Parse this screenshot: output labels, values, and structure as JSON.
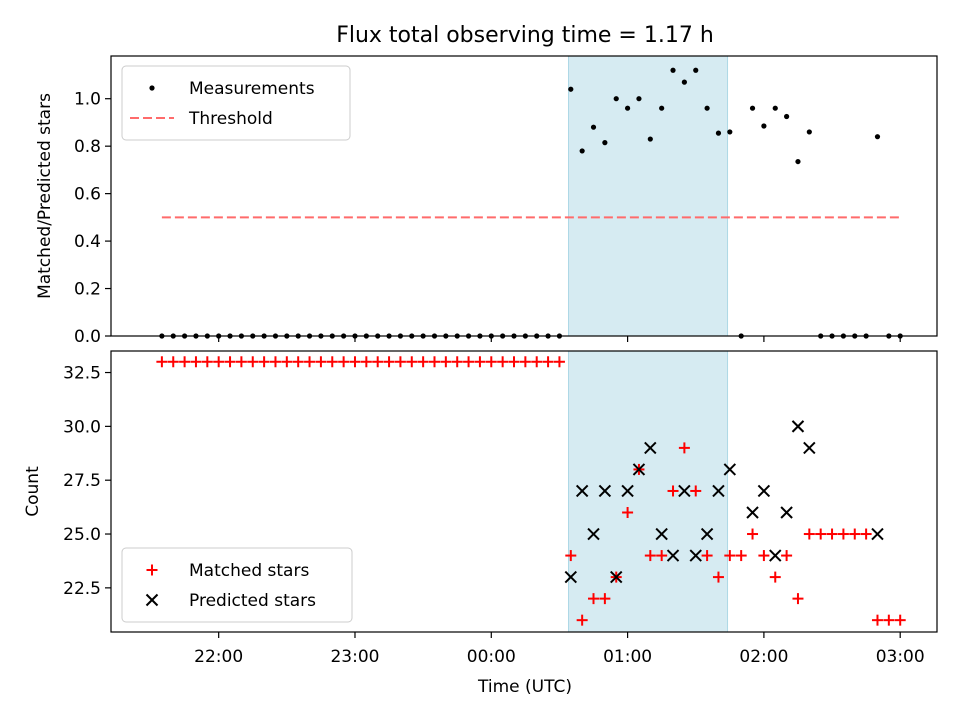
{
  "figure": {
    "title": "Flux total observing time = 1.17 h",
    "xlabel": "Time (UTC)",
    "colors": {
      "measurement": "#000000",
      "threshold": "#ff6b6b",
      "matched": "#ff0000",
      "predicted": "#000000",
      "highlight": "#add8e6"
    }
  },
  "chart_data": [
    {
      "type": "scatter",
      "title": "Flux total observing time = 1.17 h",
      "ylabel": "Matched/Predicted stars",
      "xlabel": "",
      "x_unit": "time_utc",
      "x_ticks": [
        "22:00",
        "23:00",
        "00:00",
        "01:00",
        "02:00",
        "03:00"
      ],
      "ylim": [
        0,
        1.18
      ],
      "y_ticks": [
        "0.0",
        "0.2",
        "0.4",
        "0.6",
        "0.8",
        "1.0"
      ],
      "legend_position": "top-left",
      "highlight_span": [
        "00:34",
        "01:44"
      ],
      "threshold": {
        "name": "Threshold",
        "value": 0.5,
        "x_range": [
          "21:35",
          "03:00"
        ]
      },
      "series": [
        {
          "name": "Measurements",
          "points": [
            [
              "21:35",
              0
            ],
            [
              "21:40",
              0
            ],
            [
              "21:45",
              0
            ],
            [
              "21:50",
              0
            ],
            [
              "21:55",
              0
            ],
            [
              "22:00",
              0
            ],
            [
              "22:05",
              0
            ],
            [
              "22:10",
              0
            ],
            [
              "22:15",
              0
            ],
            [
              "22:20",
              0
            ],
            [
              "22:25",
              0
            ],
            [
              "22:30",
              0
            ],
            [
              "22:35",
              0
            ],
            [
              "22:40",
              0
            ],
            [
              "22:45",
              0
            ],
            [
              "22:50",
              0
            ],
            [
              "22:55",
              0
            ],
            [
              "23:00",
              0
            ],
            [
              "23:05",
              0
            ],
            [
              "23:10",
              0
            ],
            [
              "23:15",
              0
            ],
            [
              "23:20",
              0
            ],
            [
              "23:25",
              0
            ],
            [
              "23:30",
              0
            ],
            [
              "23:35",
              0
            ],
            [
              "23:40",
              0
            ],
            [
              "23:45",
              0
            ],
            [
              "23:50",
              0
            ],
            [
              "23:55",
              0
            ],
            [
              "00:00",
              0
            ],
            [
              "00:05",
              0
            ],
            [
              "00:10",
              0
            ],
            [
              "00:15",
              0
            ],
            [
              "00:20",
              0
            ],
            [
              "00:25",
              0
            ],
            [
              "00:30",
              0
            ],
            [
              "00:35",
              1.04
            ],
            [
              "00:40",
              0.78
            ],
            [
              "00:45",
              0.88
            ],
            [
              "00:50",
              0.815
            ],
            [
              "00:55",
              1.0
            ],
            [
              "01:00",
              0.96
            ],
            [
              "01:05",
              1.0
            ],
            [
              "01:10",
              0.83
            ],
            [
              "01:15",
              0.96
            ],
            [
              "01:20",
              1.12
            ],
            [
              "01:25",
              1.07
            ],
            [
              "01:30",
              1.12
            ],
            [
              "01:35",
              0.96
            ],
            [
              "01:40",
              0.855
            ],
            [
              "01:45",
              0.86
            ],
            [
              "01:50",
              0
            ],
            [
              "01:55",
              0.96
            ],
            [
              "02:00",
              0.885
            ],
            [
              "02:05",
              0.96
            ],
            [
              "02:10",
              0.925
            ],
            [
              "02:15",
              0.735
            ],
            [
              "02:20",
              0.86
            ],
            [
              "02:25",
              0
            ],
            [
              "02:30",
              0
            ],
            [
              "02:35",
              0
            ],
            [
              "02:40",
              0
            ],
            [
              "02:45",
              0
            ],
            [
              "02:50",
              0.84
            ],
            [
              "02:55",
              0
            ],
            [
              "03:00",
              0
            ]
          ]
        }
      ]
    },
    {
      "type": "scatter",
      "title": "",
      "ylabel": "Count",
      "xlabel": "Time (UTC)",
      "x_unit": "time_utc",
      "x_ticks": [
        "22:00",
        "23:00",
        "00:00",
        "01:00",
        "02:00",
        "03:00"
      ],
      "ylim": [
        20.45,
        33.5
      ],
      "y_ticks": [
        "22.5",
        "25.0",
        "27.5",
        "30.0",
        "32.5"
      ],
      "legend_position": "bottom-left",
      "highlight_span": [
        "00:34",
        "01:44"
      ],
      "series": [
        {
          "name": "Matched stars",
          "marker": "plus",
          "points": [
            [
              "21:35",
              33
            ],
            [
              "21:40",
              33
            ],
            [
              "21:45",
              33
            ],
            [
              "21:50",
              33
            ],
            [
              "21:55",
              33
            ],
            [
              "22:00",
              33
            ],
            [
              "22:05",
              33
            ],
            [
              "22:10",
              33
            ],
            [
              "22:15",
              33
            ],
            [
              "22:20",
              33
            ],
            [
              "22:25",
              33
            ],
            [
              "22:30",
              33
            ],
            [
              "22:35",
              33
            ],
            [
              "22:40",
              33
            ],
            [
              "22:45",
              33
            ],
            [
              "22:50",
              33
            ],
            [
              "22:55",
              33
            ],
            [
              "23:00",
              33
            ],
            [
              "23:05",
              33
            ],
            [
              "23:10",
              33
            ],
            [
              "23:15",
              33
            ],
            [
              "23:20",
              33
            ],
            [
              "23:25",
              33
            ],
            [
              "23:30",
              33
            ],
            [
              "23:35",
              33
            ],
            [
              "23:40",
              33
            ],
            [
              "23:45",
              33
            ],
            [
              "23:50",
              33
            ],
            [
              "23:55",
              33
            ],
            [
              "00:00",
              33
            ],
            [
              "00:05",
              33
            ],
            [
              "00:10",
              33
            ],
            [
              "00:15",
              33
            ],
            [
              "00:20",
              33
            ],
            [
              "00:25",
              33
            ],
            [
              "00:30",
              33
            ],
            [
              "00:35",
              24
            ],
            [
              "00:40",
              21
            ],
            [
              "00:45",
              22
            ],
            [
              "00:50",
              22
            ],
            [
              "00:55",
              23
            ],
            [
              "01:00",
              26
            ],
            [
              "01:05",
              28
            ],
            [
              "01:10",
              24
            ],
            [
              "01:15",
              24
            ],
            [
              "01:20",
              27
            ],
            [
              "01:25",
              29
            ],
            [
              "01:30",
              27
            ],
            [
              "01:35",
              24
            ],
            [
              "01:40",
              23
            ],
            [
              "01:45",
              24
            ],
            [
              "01:50",
              24
            ],
            [
              "01:55",
              25
            ],
            [
              "02:00",
              24
            ],
            [
              "02:05",
              23
            ],
            [
              "02:10",
              24
            ],
            [
              "02:15",
              22
            ],
            [
              "02:20",
              25
            ],
            [
              "02:25",
              25
            ],
            [
              "02:30",
              25
            ],
            [
              "02:35",
              25
            ],
            [
              "02:40",
              25
            ],
            [
              "02:45",
              25
            ],
            [
              "02:50",
              21
            ],
            [
              "02:55",
              21
            ],
            [
              "03:00",
              21
            ]
          ]
        },
        {
          "name": "Predicted stars",
          "marker": "x",
          "points": [
            [
              "00:35",
              23
            ],
            [
              "00:40",
              27
            ],
            [
              "00:45",
              25
            ],
            [
              "00:50",
              27
            ],
            [
              "00:55",
              23
            ],
            [
              "01:00",
              27
            ],
            [
              "01:05",
              28
            ],
            [
              "01:10",
              29
            ],
            [
              "01:15",
              25
            ],
            [
              "01:20",
              24
            ],
            [
              "01:25",
              27
            ],
            [
              "01:30",
              24
            ],
            [
              "01:35",
              25
            ],
            [
              "01:40",
              27
            ],
            [
              "01:45",
              28
            ],
            [
              "01:55",
              26
            ],
            [
              "02:00",
              27
            ],
            [
              "02:05",
              24
            ],
            [
              "02:10",
              26
            ],
            [
              "02:15",
              30
            ],
            [
              "02:20",
              29
            ],
            [
              "02:50",
              25
            ]
          ]
        }
      ]
    }
  ]
}
